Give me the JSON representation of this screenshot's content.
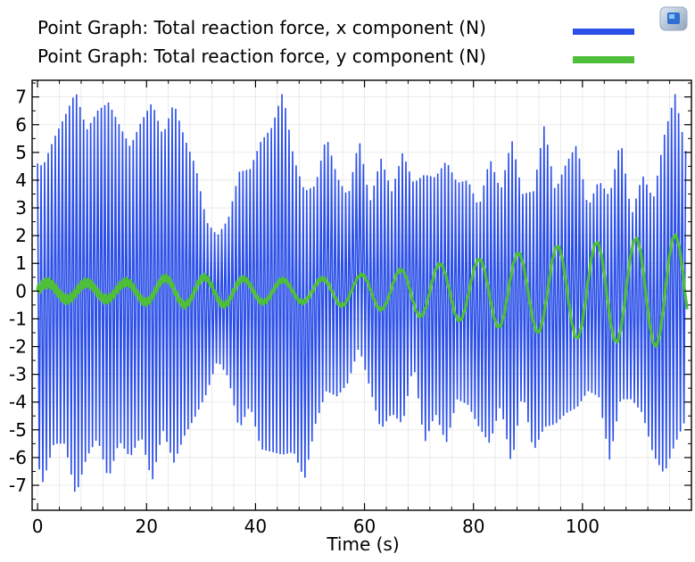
{
  "chart_data": {
    "type": "line",
    "title": "",
    "xlabel": "Time (s)",
    "ylabel": "",
    "xlim": [
      -1,
      120
    ],
    "ylim": [
      -7.9,
      7.6
    ],
    "grid": true,
    "legend_position": "top-center",
    "x_ticks": [
      0,
      20,
      40,
      60,
      80,
      100
    ],
    "x_tick_labels": [
      "0",
      "20",
      "40",
      "60",
      "80",
      "100"
    ],
    "y_ticks": [
      7,
      6,
      5,
      4,
      3,
      2,
      1,
      0,
      -1,
      -2,
      -3,
      -4,
      -5,
      -6,
      -7
    ],
    "y_tick_labels": [
      "7",
      "6",
      "5",
      "4",
      "3",
      "2",
      "1",
      "0",
      "-1",
      "-2",
      "-3",
      "-4",
      "-5",
      "-6",
      "-7"
    ],
    "legend": [
      {
        "label": "Point Graph: Total reaction force, x component (N)",
        "color": "#2b4fe8"
      },
      {
        "label": "Point Graph: Total reaction force, y component (N)",
        "color": "#4fbf3a"
      }
    ],
    "series": [
      {
        "name": "Point Graph: Total reaction force, x component (N)",
        "color": "#2b4fe8",
        "envelope": {
          "x": [
            0,
            1,
            3,
            5,
            7,
            9,
            11,
            13,
            15,
            17,
            19,
            21,
            23,
            25,
            27,
            29,
            31,
            33,
            35,
            37,
            39,
            41,
            43,
            45,
            47,
            49,
            51,
            53,
            55,
            57,
            59,
            61,
            63,
            65,
            67,
            69,
            71,
            73,
            75,
            77,
            79,
            81,
            83,
            85,
            87,
            89,
            91,
            93,
            95,
            97,
            99,
            101,
            103,
            105,
            107,
            109,
            111,
            113,
            115,
            117,
            119
          ],
          "upper": [
            4.6,
            4.5,
            5.5,
            6.3,
            7.2,
            5.8,
            6.5,
            6.8,
            6.0,
            5.2,
            6.1,
            6.8,
            5.6,
            6.8,
            5.5,
            4.5,
            2.5,
            2.0,
            2.6,
            4.3,
            4.4,
            5.4,
            5.9,
            7.2,
            4.8,
            3.6,
            3.8,
            5.6,
            4.1,
            3.4,
            5.5,
            3.2,
            4.8,
            3.6,
            5.0,
            3.9,
            4.2,
            4.1,
            4.7,
            3.9,
            4.0,
            3.0,
            4.8,
            3.6,
            5.5,
            3.5,
            3.6,
            6.0,
            3.6,
            4.6,
            5.3,
            3.0,
            4.0,
            3.4,
            5.5,
            2.7,
            4.2,
            3.3,
            5.6,
            7.1,
            5.0
          ],
          "lower": [
            -6.2,
            -6.9,
            -5.5,
            -5.5,
            -7.4,
            -6.0,
            -5.3,
            -6.8,
            -5.4,
            -6.0,
            -5.2,
            -6.9,
            -5.0,
            -6.2,
            -5.2,
            -4.5,
            -3.7,
            -2.5,
            -3.1,
            -5.0,
            -4.1,
            -5.7,
            -5.8,
            -5.9,
            -5.8,
            -6.8,
            -4.8,
            -3.6,
            -3.8,
            -3.3,
            -2.0,
            -3.5,
            -5.0,
            -4.4,
            -4.8,
            -2.6,
            -5.5,
            -4.4,
            -5.5,
            -3.9,
            -4.1,
            -4.9,
            -5.5,
            -4.1,
            -6.3,
            -3.6,
            -5.8,
            -4.9,
            -4.8,
            -4.4,
            -4.2,
            -3.6,
            -3.8,
            -6.1,
            -3.9,
            -3.9,
            -4.4,
            -5.9,
            -6.6,
            -5.5,
            -4.6
          ]
        },
        "carrier_period_s": 0.65
      },
      {
        "name": "Point Graph: Total reaction force, y component (N)",
        "color": "#4fbf3a",
        "envelope": {
          "x": [
            0,
            5,
            10,
            15,
            20,
            25,
            30,
            35,
            40,
            45,
            50,
            55,
            60,
            65,
            70,
            75,
            80,
            85,
            90,
            95,
            100,
            105,
            110,
            115,
            119
          ],
          "amplitude": [
            0.3,
            0.3,
            0.3,
            0.3,
            0.4,
            0.5,
            0.5,
            0.5,
            0.4,
            0.4,
            0.4,
            0.5,
            0.6,
            0.7,
            0.9,
            1.0,
            1.1,
            1.3,
            1.4,
            1.6,
            1.7,
            1.8,
            1.9,
            2.0,
            2.0
          ]
        },
        "period_s": 7.2
      }
    ]
  },
  "logo": {
    "icon": "comsol-logo-icon"
  }
}
